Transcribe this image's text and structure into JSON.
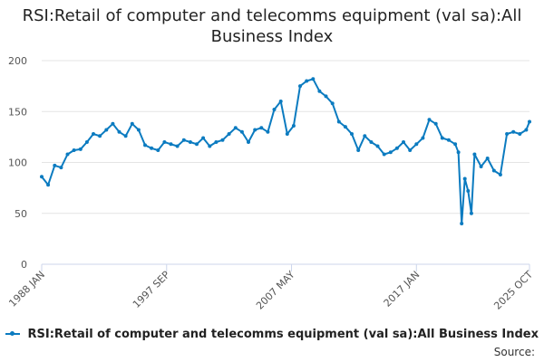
{
  "page": {
    "title": "RSI:Retail of computer and telecomms equipment (val sa):All Business Index",
    "source_label": "Source:"
  },
  "colors": {
    "series": "#0b7bc0",
    "grid": "#e4e4e4",
    "axis": "#ccd6eb"
  },
  "chart_data": {
    "type": "line",
    "title": "RSI:Retail of computer and telecomms equipment (val sa):All Business Index",
    "xlabel": "",
    "ylabel": "",
    "ylim": [
      0,
      200
    ],
    "yticks": [
      0,
      50,
      100,
      150,
      200
    ],
    "x_range": [
      "1988 JAN",
      "2025 OCT"
    ],
    "xticks": [
      "1988 JAN",
      "1997 SEP",
      "2007 MAY",
      "2017 JAN",
      "2025 OCT"
    ],
    "grid": true,
    "legend_position": "bottom",
    "series": [
      {
        "name": "RSI:Retail of computer and telecomms equipment (val sa):All Business Index",
        "x": [
          "1988 JAN",
          "1988 JUL",
          "1989 JAN",
          "1989 JUL",
          "1990 JAN",
          "1990 JUL",
          "1991 JAN",
          "1991 JUL",
          "1992 JAN",
          "1992 JUL",
          "1993 JAN",
          "1993 JUL",
          "1994 JAN",
          "1994 JUL",
          "1995 JAN",
          "1995 JUL",
          "1996 JAN",
          "1996 JUL",
          "1997 JAN",
          "1997 JUL",
          "1998 JAN",
          "1998 JUL",
          "1999 JAN",
          "1999 JUL",
          "2000 JAN",
          "2000 JUL",
          "2001 JAN",
          "2001 JUL",
          "2002 JAN",
          "2002 JUL",
          "2003 JAN",
          "2003 JUL",
          "2004 JAN",
          "2004 JUL",
          "2005 JAN",
          "2005 JUL",
          "2006 JAN",
          "2006 JUL",
          "2007 JAN",
          "2007 JUL",
          "2008 JAN",
          "2008 JUL",
          "2009 JAN",
          "2009 JUL",
          "2010 JAN",
          "2010 JUL",
          "2011 JAN",
          "2011 JUL",
          "2012 JAN",
          "2012 JUL",
          "2013 JAN",
          "2013 JUL",
          "2014 JAN",
          "2014 JUL",
          "2015 JAN",
          "2015 JUL",
          "2016 JAN",
          "2016 JUL",
          "2017 JAN",
          "2017 JUL",
          "2018 JAN",
          "2018 JUL",
          "2019 JAN",
          "2019 JUL",
          "2020 JAN",
          "2020 APR",
          "2020 JUL",
          "2020 OCT",
          "2021 JAN",
          "2021 APR",
          "2021 JUL",
          "2022 JAN",
          "2022 JUL",
          "2023 JAN",
          "2023 JUL",
          "2024 JAN",
          "2024 JUL",
          "2025 JAN",
          "2025 JUL",
          "2025 OCT"
        ],
        "values": [
          86,
          78,
          97,
          95,
          108,
          112,
          113,
          120,
          128,
          126,
          132,
          138,
          130,
          126,
          138,
          132,
          117,
          114,
          112,
          120,
          118,
          116,
          122,
          120,
          118,
          124,
          116,
          120,
          122,
          128,
          134,
          130,
          120,
          132,
          134,
          130,
          152,
          160,
          128,
          136,
          175,
          180,
          182,
          170,
          165,
          158,
          140,
          135,
          128,
          112,
          126,
          120,
          116,
          108,
          110,
          114,
          120,
          112,
          118,
          124,
          142,
          138,
          124,
          122,
          118,
          110,
          40,
          84,
          72,
          50,
          108,
          96,
          104,
          92,
          88,
          128,
          130,
          128,
          132,
          140
        ]
      }
    ]
  }
}
